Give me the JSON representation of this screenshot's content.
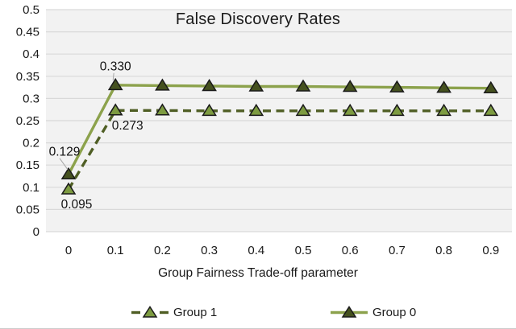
{
  "figure": {
    "title": "False Discovery Rates",
    "x_axis_title": "Group Fairness Trade-off parameter"
  },
  "legend": {
    "items": [
      {
        "label": "Group 1"
      },
      {
        "label": "Group 0"
      }
    ]
  },
  "chart_data": {
    "type": "line",
    "title": "False Discovery Rates",
    "xlabel": "Group Fairness Trade-off parameter",
    "ylabel": "",
    "x": [
      0,
      0.1,
      0.2,
      0.3,
      0.4,
      0.5,
      0.6,
      0.7,
      0.8,
      0.9
    ],
    "x_tick_labels": [
      "0",
      "0.1",
      "0.2",
      "0.3",
      "0.4",
      "0.5",
      "0.6",
      "0.7",
      "0.8",
      "0.9"
    ],
    "y_tick_labels": [
      "0",
      "0.05",
      "0.1",
      "0.15",
      "0.2",
      "0.25",
      "0.3",
      "0.35",
      "0.4",
      "0.45",
      "0.5"
    ],
    "ylim": [
      0,
      0.5
    ],
    "grid": true,
    "legend_position": "bottom",
    "plot_bg_color": "#f2f2f2",
    "gridline_color": "#d9d9d9",
    "series": [
      {
        "name": "Group 1",
        "line_style": "dashed",
        "line_color": "#4f5e24",
        "marker": "triangle",
        "marker_fill": "#7d9b41",
        "marker_edge": "#1a1a1a",
        "values": [
          0.095,
          0.273,
          0.273,
          0.272,
          0.272,
          0.272,
          0.272,
          0.272,
          0.272,
          0.272
        ]
      },
      {
        "name": "Group 0",
        "line_style": "solid",
        "line_color": "#8ca24c",
        "marker": "triangle",
        "marker_fill": "#45511f",
        "marker_edge": "#1a1a1a",
        "values": [
          0.129,
          0.33,
          0.329,
          0.328,
          0.327,
          0.327,
          0.326,
          0.325,
          0.324,
          0.323
        ]
      }
    ],
    "annotations": [
      {
        "text": "0.129",
        "series": "Group 0",
        "point_index": 0,
        "placement": "above-left",
        "leader": true
      },
      {
        "text": "0.330",
        "series": "Group 0",
        "point_index": 1,
        "placement": "above",
        "leader": true
      },
      {
        "text": "0.095",
        "series": "Group 1",
        "point_index": 0,
        "placement": "below",
        "leader": false
      },
      {
        "text": "0.273",
        "series": "Group 1",
        "point_index": 1,
        "placement": "below-right",
        "leader": false
      }
    ]
  }
}
